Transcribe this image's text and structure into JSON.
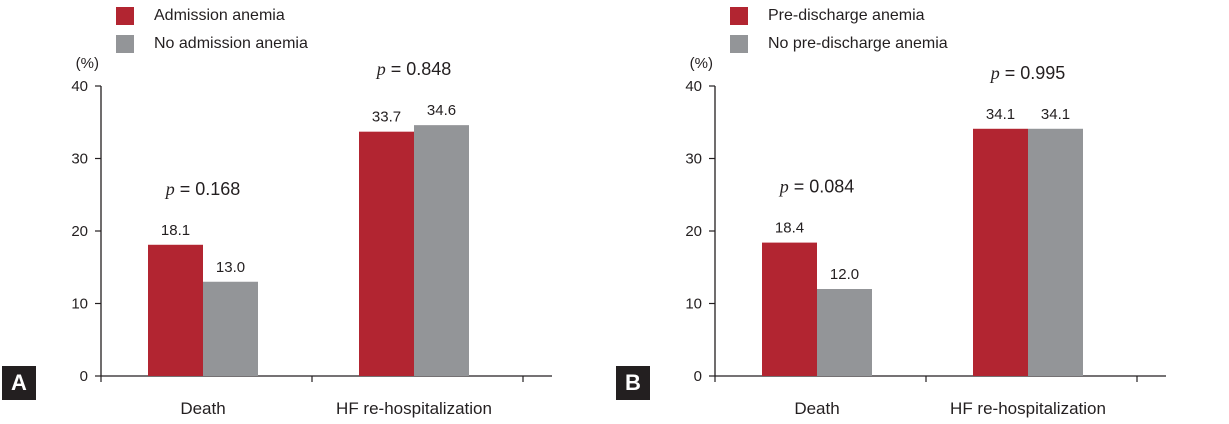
{
  "chart_data": [
    {
      "type": "bar",
      "panel": "A",
      "unit": "(%)",
      "categories": [
        "Death",
        "HF re-hospitalization"
      ],
      "series": [
        {
          "name": "Admission anemia",
          "color": "#b22531",
          "values": [
            18.1,
            33.7
          ]
        },
        {
          "name": "No admission anemia",
          "color": "#939598",
          "values": [
            13.0,
            34.6
          ]
        }
      ],
      "p_values": [
        "p = 0.168",
        "p = 0.848"
      ],
      "yticks": [
        0,
        10,
        20,
        30,
        40
      ],
      "ylim": [
        0,
        40
      ],
      "legend": "top-left",
      "grid": false
    },
    {
      "type": "bar",
      "panel": "B",
      "unit": "(%)",
      "categories": [
        "Death",
        "HF re-hospitalization"
      ],
      "series": [
        {
          "name": "Pre-discharge anemia",
          "color": "#b22531",
          "values": [
            18.4,
            34.1
          ]
        },
        {
          "name": "No pre-discharge anemia",
          "color": "#939598",
          "values": [
            12.0,
            34.1
          ]
        }
      ],
      "p_values": [
        "p = 0.084",
        "p = 0.995"
      ],
      "yticks": [
        0,
        10,
        20,
        30,
        40
      ],
      "ylim": [
        0,
        40
      ],
      "legend": "top-left",
      "grid": false
    }
  ]
}
